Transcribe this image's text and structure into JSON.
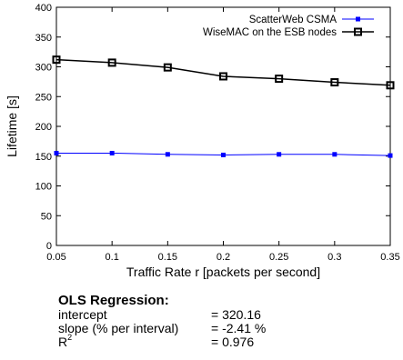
{
  "chart_data": {
    "type": "line",
    "xlabel": "Traffic Rate r [packets per second]",
    "ylabel": "Lifetime [s]",
    "xlim": [
      0.05,
      0.35
    ],
    "ylim": [
      0,
      400
    ],
    "xticks": [
      "0.05",
      "0.1",
      "0.15",
      "0.2",
      "0.25",
      "0.3",
      "0.35"
    ],
    "yticks": [
      "0",
      "50",
      "100",
      "150",
      "200",
      "250",
      "300",
      "350",
      "400"
    ],
    "legend_position": "top-right",
    "x": [
      0.05,
      0.1,
      0.15,
      0.2,
      0.25,
      0.3,
      0.35
    ],
    "series": [
      {
        "name": "ScatterWeb CSMA",
        "color": "#0000ff",
        "marker": "filled-square",
        "values": [
          155,
          155,
          153,
          152,
          153,
          153,
          151
        ]
      },
      {
        "name": "WiseMAC on the ESB nodes",
        "color": "#000000",
        "marker": "open-square",
        "values": [
          312,
          307,
          299,
          284,
          280,
          274,
          269
        ]
      }
    ]
  },
  "ols": {
    "heading": "OLS Regression:",
    "rows": [
      {
        "label": "intercept",
        "value": "= 320.16"
      },
      {
        "label": "slope (% per interval)",
        "value": "= -2.41 %"
      },
      {
        "label_base": "R",
        "label_sup": "2",
        "value": "= 0.976"
      }
    ]
  }
}
